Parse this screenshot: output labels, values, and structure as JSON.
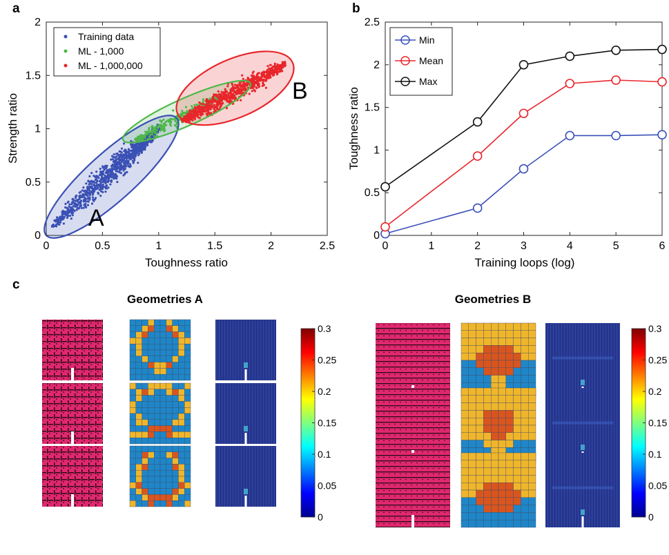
{
  "panels": {
    "a": "a",
    "b": "b",
    "c": "c"
  },
  "chart_data": [
    {
      "id": "a",
      "type": "scatter",
      "xlabel": "Toughness ratio",
      "ylabel": "Strength ratio",
      "xlim": [
        0,
        2.5
      ],
      "ylim": [
        0,
        2
      ],
      "xticks": [
        "0",
        "0.5",
        "1",
        "1.5",
        "2",
        "2.5"
      ],
      "yticks": [
        "0",
        "0.5",
        "1",
        "1.5",
        "2"
      ],
      "legend_position": "top-left",
      "series": [
        {
          "name": "Training data",
          "color": "#3a50b4",
          "x_range": [
            0.02,
            1.05
          ],
          "y_range": [
            0.05,
            1.05
          ],
          "center": [
            0.45,
            0.5
          ]
        },
        {
          "name": "ML - 1,000",
          "color": "#4db848",
          "x_range": [
            0.8,
            1.6
          ],
          "y_range": [
            0.85,
            1.35
          ],
          "center": [
            1.1,
            1.05
          ]
        },
        {
          "name": "ML - 1,000,000",
          "color": "#e8262b",
          "x_range": [
            1.2,
            2.15
          ],
          "y_range": [
            1.05,
            1.62
          ],
          "center": [
            1.6,
            1.3
          ]
        }
      ],
      "annotations": [
        "A",
        "B"
      ]
    },
    {
      "id": "b",
      "type": "line",
      "xlabel": "Training loops (log)",
      "ylabel": "Toughness ratio",
      "xlim": [
        0,
        6
      ],
      "ylim": [
        0,
        2.5
      ],
      "xticks": [
        "0",
        "1",
        "2",
        "3",
        "4",
        "5",
        "6"
      ],
      "yticks": [
        "0",
        "0.5",
        "1",
        "1.5",
        "2",
        "2.5"
      ],
      "legend_position": "top-left",
      "x": [
        0,
        2,
        3,
        4,
        5,
        6
      ],
      "series": [
        {
          "name": "Min",
          "color": "#3a4fb8",
          "values": [
            0.02,
            0.32,
            0.78,
            1.17,
            1.17,
            1.18
          ]
        },
        {
          "name": "Mean",
          "color": "#e8262b",
          "values": [
            0.1,
            0.93,
            1.43,
            1.78,
            1.82,
            1.8
          ]
        },
        {
          "name": "Max",
          "color": "#111111",
          "values": [
            0.57,
            1.33,
            2.0,
            2.1,
            2.17,
            2.18
          ]
        }
      ]
    }
  ],
  "geometries": {
    "a_title": "Geometries A",
    "b_title": "Geometries B",
    "colorbar_ticks": [
      "0.3",
      "0.25",
      "0.2",
      "0.15",
      "0.1",
      "0.05",
      "0"
    ],
    "colorbar_range": [
      0,
      0.3
    ],
    "colors": {
      "magenta": "#e0286f",
      "orange": "#d9551f",
      "yellow": "#f0b62b",
      "blue": "#1f86c8",
      "field_blue": "#25358f"
    },
    "grids_a": [
      [
        "BBBYBBYBBB",
        "BBYOBBOYBB",
        "BYOBBBBOYB",
        "YYBBBBBBYY",
        "BYBBBBBBYB",
        "BYBBBBBBYB",
        "BBYBBBBYBB",
        "BBBOYYOBBB",
        "BBBBYYBBBB",
        "BBBBBBBBBB"
      ],
      [
        "YBBYYYYBBY",
        "BYOYBBYOYB",
        "BYBBBBBBYB",
        "YBBBBBBBBY",
        "YBBBBBBBBY",
        "BYBBBBBBYB",
        "BYYBBBBYYB",
        "BBBOOOOBBB",
        "YYYOBBOYYY",
        "BBBBBBBBBB"
      ],
      [
        "BBBBBBBBBB",
        "BBOYBBYOBB",
        "BBYBBBBYBB",
        "BYOBBBBOYB",
        "BYBBBBBBYB",
        "BYBBBBBBYB",
        "YOBBBBBBOY",
        "BYOBBBBOYB",
        "BBYOOOOYBB",
        "YBBOBBOBBY"
      ]
    ],
    "grids_b": [
      [
        "YYYYYYYYYY",
        "YYYYYYYYYY",
        "YYYYYYYYYY",
        "YYYOOOOYYY",
        "YYOOOOOOYY",
        "BBOOOOOOBB",
        "BBBOOOOBBB",
        "BBBBYYBBBB",
        "BBBBYYBBBB",
        "BBBBYYBBBB"
      ],
      [
        "YYYYYYYYYY",
        "YYYYYYYYYY",
        "YYYYYYYYYY",
        "YYYOOOOYYY",
        "YYYOOOOYYY",
        "YYYOOOOYYY",
        "YYYYOOYYYY",
        "BBBYYYYBBB",
        "BBBBYYBBBB",
        "BBBBBBBBBB"
      ],
      [
        "YYYYYYYYYY",
        "YYYYYYYYYY",
        "YYYYYYYYYY",
        "YYYYYYYYYY",
        "YYYOOOOYYY",
        "YYOOOOOOYY",
        "BBOOOOOOBB",
        "BBBOOOOBBB",
        "BBBBBBBBBB",
        "BBBBBBBBBB"
      ]
    ]
  }
}
